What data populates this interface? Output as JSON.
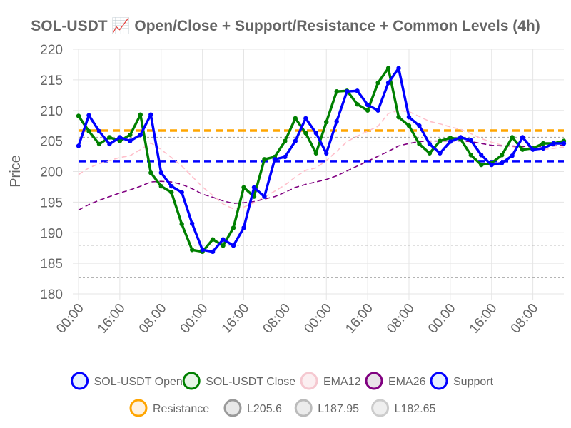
{
  "chart_data": {
    "type": "line",
    "title": "SOL-USDT 📈 Open/Close + Support/Resistance + Common Levels (4h)",
    "ylabel": "Price",
    "xlabel": "",
    "ylim": [
      180,
      220
    ],
    "yticks": [
      "180",
      "185",
      "190",
      "195",
      "200",
      "205",
      "210",
      "215",
      "220"
    ],
    "xtick_labels": [
      "00:00",
      "16:00",
      "08:00",
      "00:00",
      "16:00",
      "08:00",
      "00:00",
      "16:00",
      "08:00",
      "00:00",
      "16:00",
      "08:00"
    ],
    "xtick_positions": [
      0,
      4,
      8,
      12,
      16,
      20,
      24,
      28,
      32,
      36,
      40,
      44
    ],
    "n_points": 48,
    "grid": true,
    "legend_placement": "bottom",
    "series": [
      {
        "name": "SOL-USDT Open",
        "color": "#0000ff",
        "style": "solid-markers",
        "values": [
          204.2,
          209.2,
          206.6,
          204.5,
          205.6,
          205.0,
          206.0,
          209.3,
          199.8,
          197.6,
          196.6,
          191.5,
          187.2,
          186.9,
          188.9,
          187.9,
          190.8,
          197.4,
          195.9,
          202.0,
          202.4,
          205.0,
          208.7,
          206.3,
          203.0,
          208.2,
          213.1,
          213.2,
          210.9,
          210.0,
          214.5,
          216.9,
          208.9,
          207.5,
          204.5,
          203.0,
          204.9,
          205.6,
          205.1,
          202.7,
          201.1,
          201.4,
          202.6,
          205.6,
          203.6,
          203.8,
          204.6,
          204.6
        ]
      },
      {
        "name": "SOL-USDT Close",
        "color": "#008000",
        "style": "solid-markers",
        "values": [
          209.1,
          206.6,
          204.5,
          205.6,
          205.0,
          206.0,
          209.3,
          199.8,
          197.6,
          196.6,
          191.4,
          187.2,
          186.9,
          188.9,
          187.9,
          190.8,
          197.4,
          195.9,
          202.0,
          202.4,
          205.0,
          208.7,
          206.3,
          203.0,
          208.1,
          213.1,
          213.2,
          211.0,
          210.0,
          214.5,
          216.9,
          208.9,
          207.5,
          204.5,
          203.0,
          205.0,
          205.5,
          205.3,
          202.7,
          201.1,
          201.4,
          202.7,
          205.6,
          203.6,
          203.8,
          204.6,
          204.6,
          205.0
        ]
      },
      {
        "name": "EMA12",
        "color": "#ffc0cb",
        "style": "dashed",
        "values": [
          199.5,
          200.6,
          201.3,
          201.8,
          202.3,
          202.6,
          203.6,
          204.7,
          203.6,
          202.3,
          200.9,
          199.2,
          197.5,
          196.1,
          194.7,
          193.9,
          194.2,
          194.9,
          195.8,
          196.8,
          197.8,
          199.1,
          200.2,
          200.6,
          201.8,
          203.3,
          204.9,
          205.8,
          206.6,
          207.4,
          209.5,
          210.0,
          209.8,
          209.0,
          208.2,
          207.8,
          207.3,
          206.9,
          206.2,
          205.4,
          204.8,
          204.3,
          204.1,
          203.7,
          203.6,
          203.6,
          203.8,
          204.0
        ]
      },
      {
        "name": "EMA26",
        "color": "#800080",
        "style": "dashed",
        "values": [
          193.7,
          194.6,
          195.3,
          195.9,
          196.5,
          197.0,
          197.6,
          198.3,
          198.4,
          198.3,
          197.9,
          197.2,
          196.3,
          195.8,
          195.2,
          194.8,
          194.9,
          195.1,
          195.5,
          195.9,
          196.6,
          197.4,
          197.9,
          198.3,
          198.7,
          199.3,
          200.1,
          200.9,
          201.7,
          202.5,
          203.3,
          204.2,
          204.6,
          204.9,
          205.0,
          205.0,
          205.0,
          205.0,
          204.9,
          204.6,
          204.3,
          204.2,
          204.2,
          204.1,
          204.1,
          204.1,
          204.2,
          204.3
        ]
      }
    ],
    "levels": [
      {
        "name": "Support",
        "value": 201.7,
        "color": "#0000ff",
        "style": "thick-dashed"
      },
      {
        "name": "Resistance",
        "value": 206.7,
        "color": "#ffa500",
        "style": "thick-dashed"
      },
      {
        "name": "L205.6",
        "value": 205.6,
        "color": "#aaaaaa",
        "style": "dotted"
      },
      {
        "name": "L187.95",
        "value": 187.95,
        "color": "#aaaaaa",
        "style": "dotted"
      },
      {
        "name": "L182.65",
        "value": 182.65,
        "color": "#aaaaaa",
        "style": "dotted"
      }
    ],
    "legend": [
      {
        "label": "SOL-USDT Open",
        "stroke": "#0000ff",
        "fill": "#e6f0ff"
      },
      {
        "label": "SOL-USDT Close",
        "stroke": "#008000",
        "fill": "#e6f5e6"
      },
      {
        "label": "EMA12",
        "stroke": "#f5c8d0",
        "fill": "#fbeff1"
      },
      {
        "label": "EMA26",
        "stroke": "#800080",
        "fill": "#e8e3e8"
      },
      {
        "label": "Support",
        "stroke": "#0000ff",
        "fill": "#e6f0ff"
      },
      {
        "label": "Resistance",
        "stroke": "#ffa500",
        "fill": "#fff2e0"
      },
      {
        "label": "L205.6",
        "stroke": "#999999",
        "fill": "#e8e8e8"
      },
      {
        "label": "L187.95",
        "stroke": "#bbbbbb",
        "fill": "#ececec"
      },
      {
        "label": "L182.65",
        "stroke": "#cccccc",
        "fill": "#efefef"
      }
    ]
  }
}
